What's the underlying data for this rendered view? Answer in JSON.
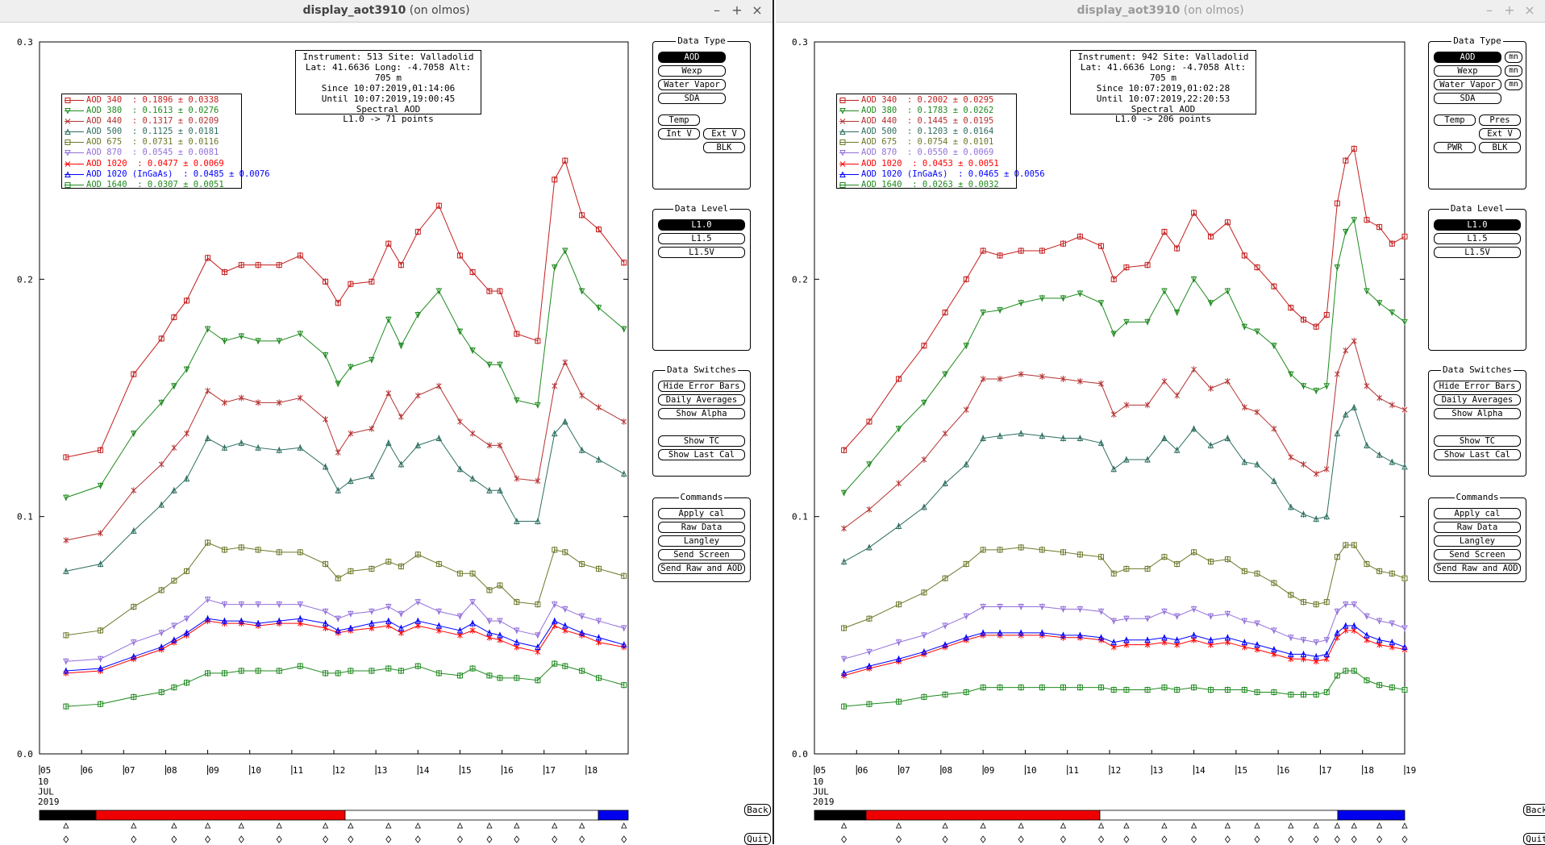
{
  "windows": [
    {
      "id": "left",
      "title_name": "display_aot3910",
      "title_host": "(on olmos)",
      "info": [
        "Instrument: 513 Site: Valladolid",
        "Lat: 41.6636 Long: -4.7058 Alt: 705 m",
        "Since 10:07:2019,01:14:06",
        "Until 10:07:2019,19:00:45",
        "Spectral AOD",
        "L1.0 -> 71 points"
      ],
      "legend": [
        {
          "label": "AOD 340  : 0.1896 ± 0.0338",
          "color": "#c41e1e",
          "marker": "square"
        },
        {
          "label": "AOD 380  : 0.1613 ± 0.0276",
          "color": "#1f8a1f",
          "marker": "tri-down"
        },
        {
          "label": "AOD 440  : 0.1317 ± 0.0209",
          "color": "#b53232",
          "marker": "x"
        },
        {
          "label": "AOD 500  : 0.1125 ± 0.0181",
          "color": "#2d6e60",
          "marker": "tri-up"
        },
        {
          "label": "AOD 675  : 0.0731 ± 0.0116",
          "color": "#6b7a2a",
          "marker": "square"
        },
        {
          "label": "AOD 870  : 0.0545 ± 0.0081",
          "color": "#9370db",
          "marker": "tri-down"
        },
        {
          "label": "AOD 1020  : 0.0477 ± 0.0069",
          "color": "#ff0000",
          "marker": "x"
        },
        {
          "label": "AOD 1020 (InGaAs)  : 0.0485 ± 0.0076",
          "color": "#0000ff",
          "marker": "tri-up"
        },
        {
          "label": "AOD 1640  : 0.0307 ± 0.0051",
          "color": "#1f8a1f",
          "marker": "square"
        }
      ],
      "n_points": 71
    },
    {
      "id": "right",
      "title_name": "display_aot3910",
      "title_host": "(on olmos)",
      "info": [
        "Instrument: 942 Site: Valladolid",
        "Lat: 41.6636 Long: -4.7058 Alt: 705 m",
        "Since 10:07:2019,01:02:28",
        "Until 10:07:2019,22:20:53",
        "Spectral AOD",
        "L1.0 -> 206 points"
      ],
      "legend": [
        {
          "label": "AOD 340  : 0.2002 ± 0.0295",
          "color": "#c41e1e",
          "marker": "square"
        },
        {
          "label": "AOD 380  : 0.1783 ± 0.0262",
          "color": "#1f8a1f",
          "marker": "tri-down"
        },
        {
          "label": "AOD 440  : 0.1445 ± 0.0195",
          "color": "#b53232",
          "marker": "x"
        },
        {
          "label": "AOD 500  : 0.1203 ± 0.0164",
          "color": "#2d6e60",
          "marker": "tri-up"
        },
        {
          "label": "AOD 675  : 0.0754 ± 0.0101",
          "color": "#6b7a2a",
          "marker": "square"
        },
        {
          "label": "AOD 870  : 0.0550 ± 0.0069",
          "color": "#9370db",
          "marker": "tri-down"
        },
        {
          "label": "AOD 1020  : 0.0453 ± 0.0051",
          "color": "#ff0000",
          "marker": "x"
        },
        {
          "label": "AOD 1020 (InGaAs)  : 0.0465 ± 0.0056",
          "color": "#0000ff",
          "marker": "tri-up"
        },
        {
          "label": "AOD 1640  : 0.0263 ± 0.0032",
          "color": "#1f8a1f",
          "marker": "square"
        }
      ],
      "n_points": 206
    }
  ],
  "axis": {
    "y_ticks": [
      "0.0",
      "0.1",
      "0.2",
      "0.3"
    ],
    "x_ticks_left": [
      "05",
      "06",
      "07",
      "08",
      "09",
      "10",
      "11",
      "12",
      "13",
      "14",
      "15",
      "16",
      "17",
      "18"
    ],
    "x_ticks_right": [
      "05",
      "06",
      "07",
      "08",
      "09",
      "10",
      "11",
      "12",
      "13",
      "14",
      "15",
      "16",
      "17",
      "18",
      "19"
    ],
    "date_lines": [
      "10",
      "JUL",
      "2019"
    ]
  },
  "panels": {
    "data_type": {
      "title": "Data Type",
      "aod": "AOD",
      "wexp": "Wexp",
      "water_vapor": "Water Vapor",
      "sda": "SDA",
      "temp": "Temp",
      "pres": "Pres",
      "int_v": "Int V",
      "ext_v": "Ext V",
      "blk": "BLK",
      "pwr": "PWR",
      "mn": "mn"
    },
    "data_level": {
      "title": "Data Level",
      "l10": "L1.0",
      "l15": "L1.5",
      "l15v": "L1.5V"
    },
    "data_switches": {
      "title": "Data Switches",
      "hide_error_bars": "Hide Error Bars",
      "daily_averages": "Daily Averages",
      "show_alpha": "Show Alpha",
      "show_tc": "Show TC",
      "show_last_cal": "Show Last Cal"
    },
    "commands": {
      "title": "Commands",
      "apply_cal": "Apply cal",
      "raw_data": "Raw Data",
      "langley": "Langley",
      "send_screen": "Send Screen",
      "send_raw_aod": "Send Raw and AOD"
    }
  },
  "nav": {
    "back": "Back",
    "quit": "Quit"
  },
  "colors": {
    "timebar_black": "#000000",
    "timebar_red": "#ee0000",
    "timebar_white": "#ffffff",
    "timebar_blue": "#0000ee"
  },
  "chart_data": [
    {
      "type": "line",
      "window": "left",
      "xlabel": "",
      "ylabel": "",
      "x_unit": "hour of day (UTC) on 10 JUL 2019",
      "ylim": [
        0,
        0.3
      ],
      "xlim": [
        5,
        19
      ],
      "x": [
        5.63,
        6.45,
        7.24,
        7.9,
        8.2,
        8.5,
        9.0,
        9.4,
        9.8,
        10.2,
        10.7,
        11.2,
        11.8,
        12.1,
        12.4,
        12.9,
        13.3,
        13.6,
        14.0,
        14.5,
        15.0,
        15.3,
        15.7,
        15.95,
        16.35,
        16.85,
        17.25,
        17.5,
        17.9,
        18.3,
        18.9
      ],
      "series": [
        {
          "name": "AOD 340",
          "values": [
            0.125,
            0.128,
            0.16,
            0.175,
            0.184,
            0.191,
            0.209,
            0.203,
            0.206,
            0.206,
            0.206,
            0.21,
            0.199,
            0.19,
            0.198,
            0.199,
            0.215,
            0.206,
            0.22,
            0.231,
            0.21,
            0.203,
            0.195,
            0.195,
            0.177,
            0.174,
            0.242,
            0.25,
            0.227,
            0.221,
            0.207
          ]
        },
        {
          "name": "AOD 380",
          "values": [
            0.108,
            0.113,
            0.135,
            0.148,
            0.155,
            0.162,
            0.179,
            0.174,
            0.176,
            0.174,
            0.174,
            0.177,
            0.168,
            0.156,
            0.163,
            0.166,
            0.183,
            0.172,
            0.185,
            0.195,
            0.178,
            0.17,
            0.164,
            0.164,
            0.149,
            0.147,
            0.205,
            0.212,
            0.195,
            0.188,
            0.179
          ]
        },
        {
          "name": "AOD 440",
          "values": [
            0.09,
            0.093,
            0.111,
            0.122,
            0.129,
            0.135,
            0.153,
            0.148,
            0.15,
            0.148,
            0.148,
            0.15,
            0.141,
            0.127,
            0.135,
            0.137,
            0.152,
            0.142,
            0.151,
            0.155,
            0.14,
            0.135,
            0.13,
            0.13,
            0.116,
            0.115,
            0.155,
            0.165,
            0.151,
            0.146,
            0.14
          ]
        },
        {
          "name": "AOD 500",
          "values": [
            0.077,
            0.08,
            0.094,
            0.105,
            0.111,
            0.116,
            0.133,
            0.129,
            0.131,
            0.129,
            0.128,
            0.129,
            0.121,
            0.111,
            0.115,
            0.117,
            0.131,
            0.122,
            0.13,
            0.133,
            0.12,
            0.116,
            0.111,
            0.111,
            0.098,
            0.098,
            0.135,
            0.14,
            0.128,
            0.124,
            0.118
          ]
        },
        {
          "name": "AOD 675",
          "values": [
            0.05,
            0.052,
            0.062,
            0.069,
            0.073,
            0.077,
            0.089,
            0.086,
            0.087,
            0.086,
            0.085,
            0.085,
            0.08,
            0.074,
            0.077,
            0.078,
            0.081,
            0.079,
            0.084,
            0.08,
            0.076,
            0.076,
            0.069,
            0.071,
            0.064,
            0.063,
            0.086,
            0.085,
            0.08,
            0.078,
            0.075
          ]
        },
        {
          "name": "AOD 870",
          "values": [
            0.039,
            0.04,
            0.047,
            0.051,
            0.054,
            0.057,
            0.065,
            0.063,
            0.063,
            0.063,
            0.063,
            0.063,
            0.06,
            0.057,
            0.059,
            0.06,
            0.062,
            0.059,
            0.064,
            0.06,
            0.058,
            0.064,
            0.056,
            0.056,
            0.052,
            0.05,
            0.063,
            0.061,
            0.058,
            0.056,
            0.053
          ]
        },
        {
          "name": "AOD 1020",
          "values": [
            0.034,
            0.035,
            0.04,
            0.044,
            0.047,
            0.05,
            0.056,
            0.055,
            0.055,
            0.054,
            0.055,
            0.055,
            0.053,
            0.051,
            0.052,
            0.053,
            0.054,
            0.051,
            0.054,
            0.052,
            0.05,
            0.052,
            0.049,
            0.048,
            0.045,
            0.043,
            0.054,
            0.052,
            0.05,
            0.047,
            0.045
          ]
        },
        {
          "name": "AOD 1020 (InGaAs)",
          "values": [
            0.035,
            0.036,
            0.041,
            0.045,
            0.048,
            0.051,
            0.057,
            0.056,
            0.056,
            0.055,
            0.056,
            0.057,
            0.055,
            0.052,
            0.053,
            0.055,
            0.056,
            0.053,
            0.056,
            0.054,
            0.052,
            0.055,
            0.051,
            0.05,
            0.047,
            0.045,
            0.056,
            0.054,
            0.051,
            0.049,
            0.046
          ]
        },
        {
          "name": "AOD 1640",
          "values": [
            0.02,
            0.021,
            0.024,
            0.026,
            0.028,
            0.03,
            0.034,
            0.034,
            0.035,
            0.035,
            0.035,
            0.037,
            0.034,
            0.034,
            0.035,
            0.035,
            0.036,
            0.035,
            0.037,
            0.034,
            0.033,
            0.036,
            0.033,
            0.032,
            0.032,
            0.031,
            0.038,
            0.037,
            0.035,
            0.032,
            0.029
          ]
        }
      ]
    },
    {
      "type": "line",
      "window": "right",
      "xlabel": "",
      "ylabel": "",
      "x_unit": "hour of day (UTC) on 10 JUL 2019",
      "ylim": [
        0,
        0.3
      ],
      "xlim": [
        5,
        19
      ],
      "x": [
        5.7,
        6.3,
        7.0,
        7.6,
        8.1,
        8.6,
        9.0,
        9.4,
        9.9,
        10.4,
        10.9,
        11.3,
        11.8,
        12.1,
        12.4,
        12.9,
        13.3,
        13.6,
        14.0,
        14.4,
        14.8,
        15.2,
        15.5,
        15.9,
        16.3,
        16.6,
        16.9,
        17.15,
        17.4,
        17.6,
        17.8,
        18.1,
        18.4,
        18.7,
        19.0
      ],
      "series": [
        {
          "name": "AOD 340",
          "values": [
            0.128,
            0.14,
            0.158,
            0.172,
            0.186,
            0.2,
            0.212,
            0.21,
            0.212,
            0.212,
            0.215,
            0.218,
            0.214,
            0.2,
            0.205,
            0.206,
            0.22,
            0.213,
            0.228,
            0.218,
            0.224,
            0.21,
            0.205,
            0.197,
            0.188,
            0.183,
            0.18,
            0.185,
            0.232,
            0.25,
            0.255,
            0.225,
            0.222,
            0.215,
            0.218
          ]
        },
        {
          "name": "AOD 380",
          "values": [
            0.11,
            0.122,
            0.137,
            0.148,
            0.16,
            0.172,
            0.186,
            0.187,
            0.19,
            0.192,
            0.192,
            0.194,
            0.19,
            0.177,
            0.182,
            0.182,
            0.195,
            0.186,
            0.2,
            0.19,
            0.195,
            0.18,
            0.178,
            0.172,
            0.16,
            0.155,
            0.153,
            0.155,
            0.205,
            0.22,
            0.225,
            0.195,
            0.19,
            0.186,
            0.182
          ]
        },
        {
          "name": "AOD 440",
          "values": [
            0.095,
            0.103,
            0.114,
            0.124,
            0.135,
            0.145,
            0.158,
            0.158,
            0.16,
            0.159,
            0.158,
            0.157,
            0.156,
            0.143,
            0.147,
            0.147,
            0.157,
            0.151,
            0.162,
            0.154,
            0.157,
            0.146,
            0.144,
            0.137,
            0.125,
            0.122,
            0.118,
            0.12,
            0.16,
            0.17,
            0.174,
            0.155,
            0.15,
            0.147,
            0.145
          ]
        },
        {
          "name": "AOD 500",
          "values": [
            0.081,
            0.087,
            0.096,
            0.104,
            0.114,
            0.122,
            0.133,
            0.134,
            0.135,
            0.134,
            0.133,
            0.133,
            0.131,
            0.12,
            0.124,
            0.124,
            0.133,
            0.128,
            0.137,
            0.13,
            0.133,
            0.123,
            0.122,
            0.115,
            0.104,
            0.101,
            0.099,
            0.1,
            0.135,
            0.143,
            0.146,
            0.13,
            0.126,
            0.123,
            0.121
          ]
        },
        {
          "name": "AOD 675",
          "values": [
            0.053,
            0.057,
            0.063,
            0.068,
            0.074,
            0.08,
            0.086,
            0.086,
            0.087,
            0.086,
            0.085,
            0.084,
            0.083,
            0.076,
            0.078,
            0.078,
            0.083,
            0.08,
            0.085,
            0.081,
            0.082,
            0.077,
            0.076,
            0.072,
            0.067,
            0.064,
            0.063,
            0.064,
            0.083,
            0.088,
            0.088,
            0.08,
            0.077,
            0.076,
            0.074
          ]
        },
        {
          "name": "AOD 870",
          "values": [
            0.04,
            0.043,
            0.047,
            0.05,
            0.054,
            0.058,
            0.062,
            0.062,
            0.062,
            0.062,
            0.061,
            0.061,
            0.06,
            0.056,
            0.057,
            0.057,
            0.06,
            0.058,
            0.061,
            0.058,
            0.059,
            0.056,
            0.055,
            0.052,
            0.049,
            0.048,
            0.047,
            0.048,
            0.06,
            0.063,
            0.063,
            0.058,
            0.056,
            0.055,
            0.053
          ]
        },
        {
          "name": "AOD 1020",
          "values": [
            0.033,
            0.036,
            0.039,
            0.042,
            0.045,
            0.048,
            0.05,
            0.05,
            0.05,
            0.05,
            0.049,
            0.049,
            0.048,
            0.045,
            0.046,
            0.046,
            0.047,
            0.046,
            0.048,
            0.046,
            0.047,
            0.045,
            0.044,
            0.042,
            0.04,
            0.04,
            0.039,
            0.04,
            0.049,
            0.052,
            0.052,
            0.048,
            0.046,
            0.045,
            0.044
          ]
        },
        {
          "name": "AOD 1020 (InGaAs)",
          "values": [
            0.034,
            0.037,
            0.04,
            0.043,
            0.046,
            0.049,
            0.051,
            0.051,
            0.051,
            0.051,
            0.05,
            0.05,
            0.049,
            0.047,
            0.048,
            0.048,
            0.049,
            0.048,
            0.05,
            0.048,
            0.049,
            0.047,
            0.046,
            0.044,
            0.042,
            0.042,
            0.041,
            0.042,
            0.051,
            0.054,
            0.054,
            0.05,
            0.048,
            0.047,
            0.045
          ]
        },
        {
          "name": "AOD 1640",
          "values": [
            0.02,
            0.021,
            0.022,
            0.024,
            0.025,
            0.026,
            0.028,
            0.028,
            0.028,
            0.028,
            0.028,
            0.028,
            0.028,
            0.027,
            0.027,
            0.027,
            0.028,
            0.027,
            0.028,
            0.027,
            0.027,
            0.027,
            0.026,
            0.026,
            0.025,
            0.025,
            0.025,
            0.026,
            0.033,
            0.035,
            0.035,
            0.031,
            0.029,
            0.028,
            0.027
          ]
        }
      ]
    }
  ]
}
